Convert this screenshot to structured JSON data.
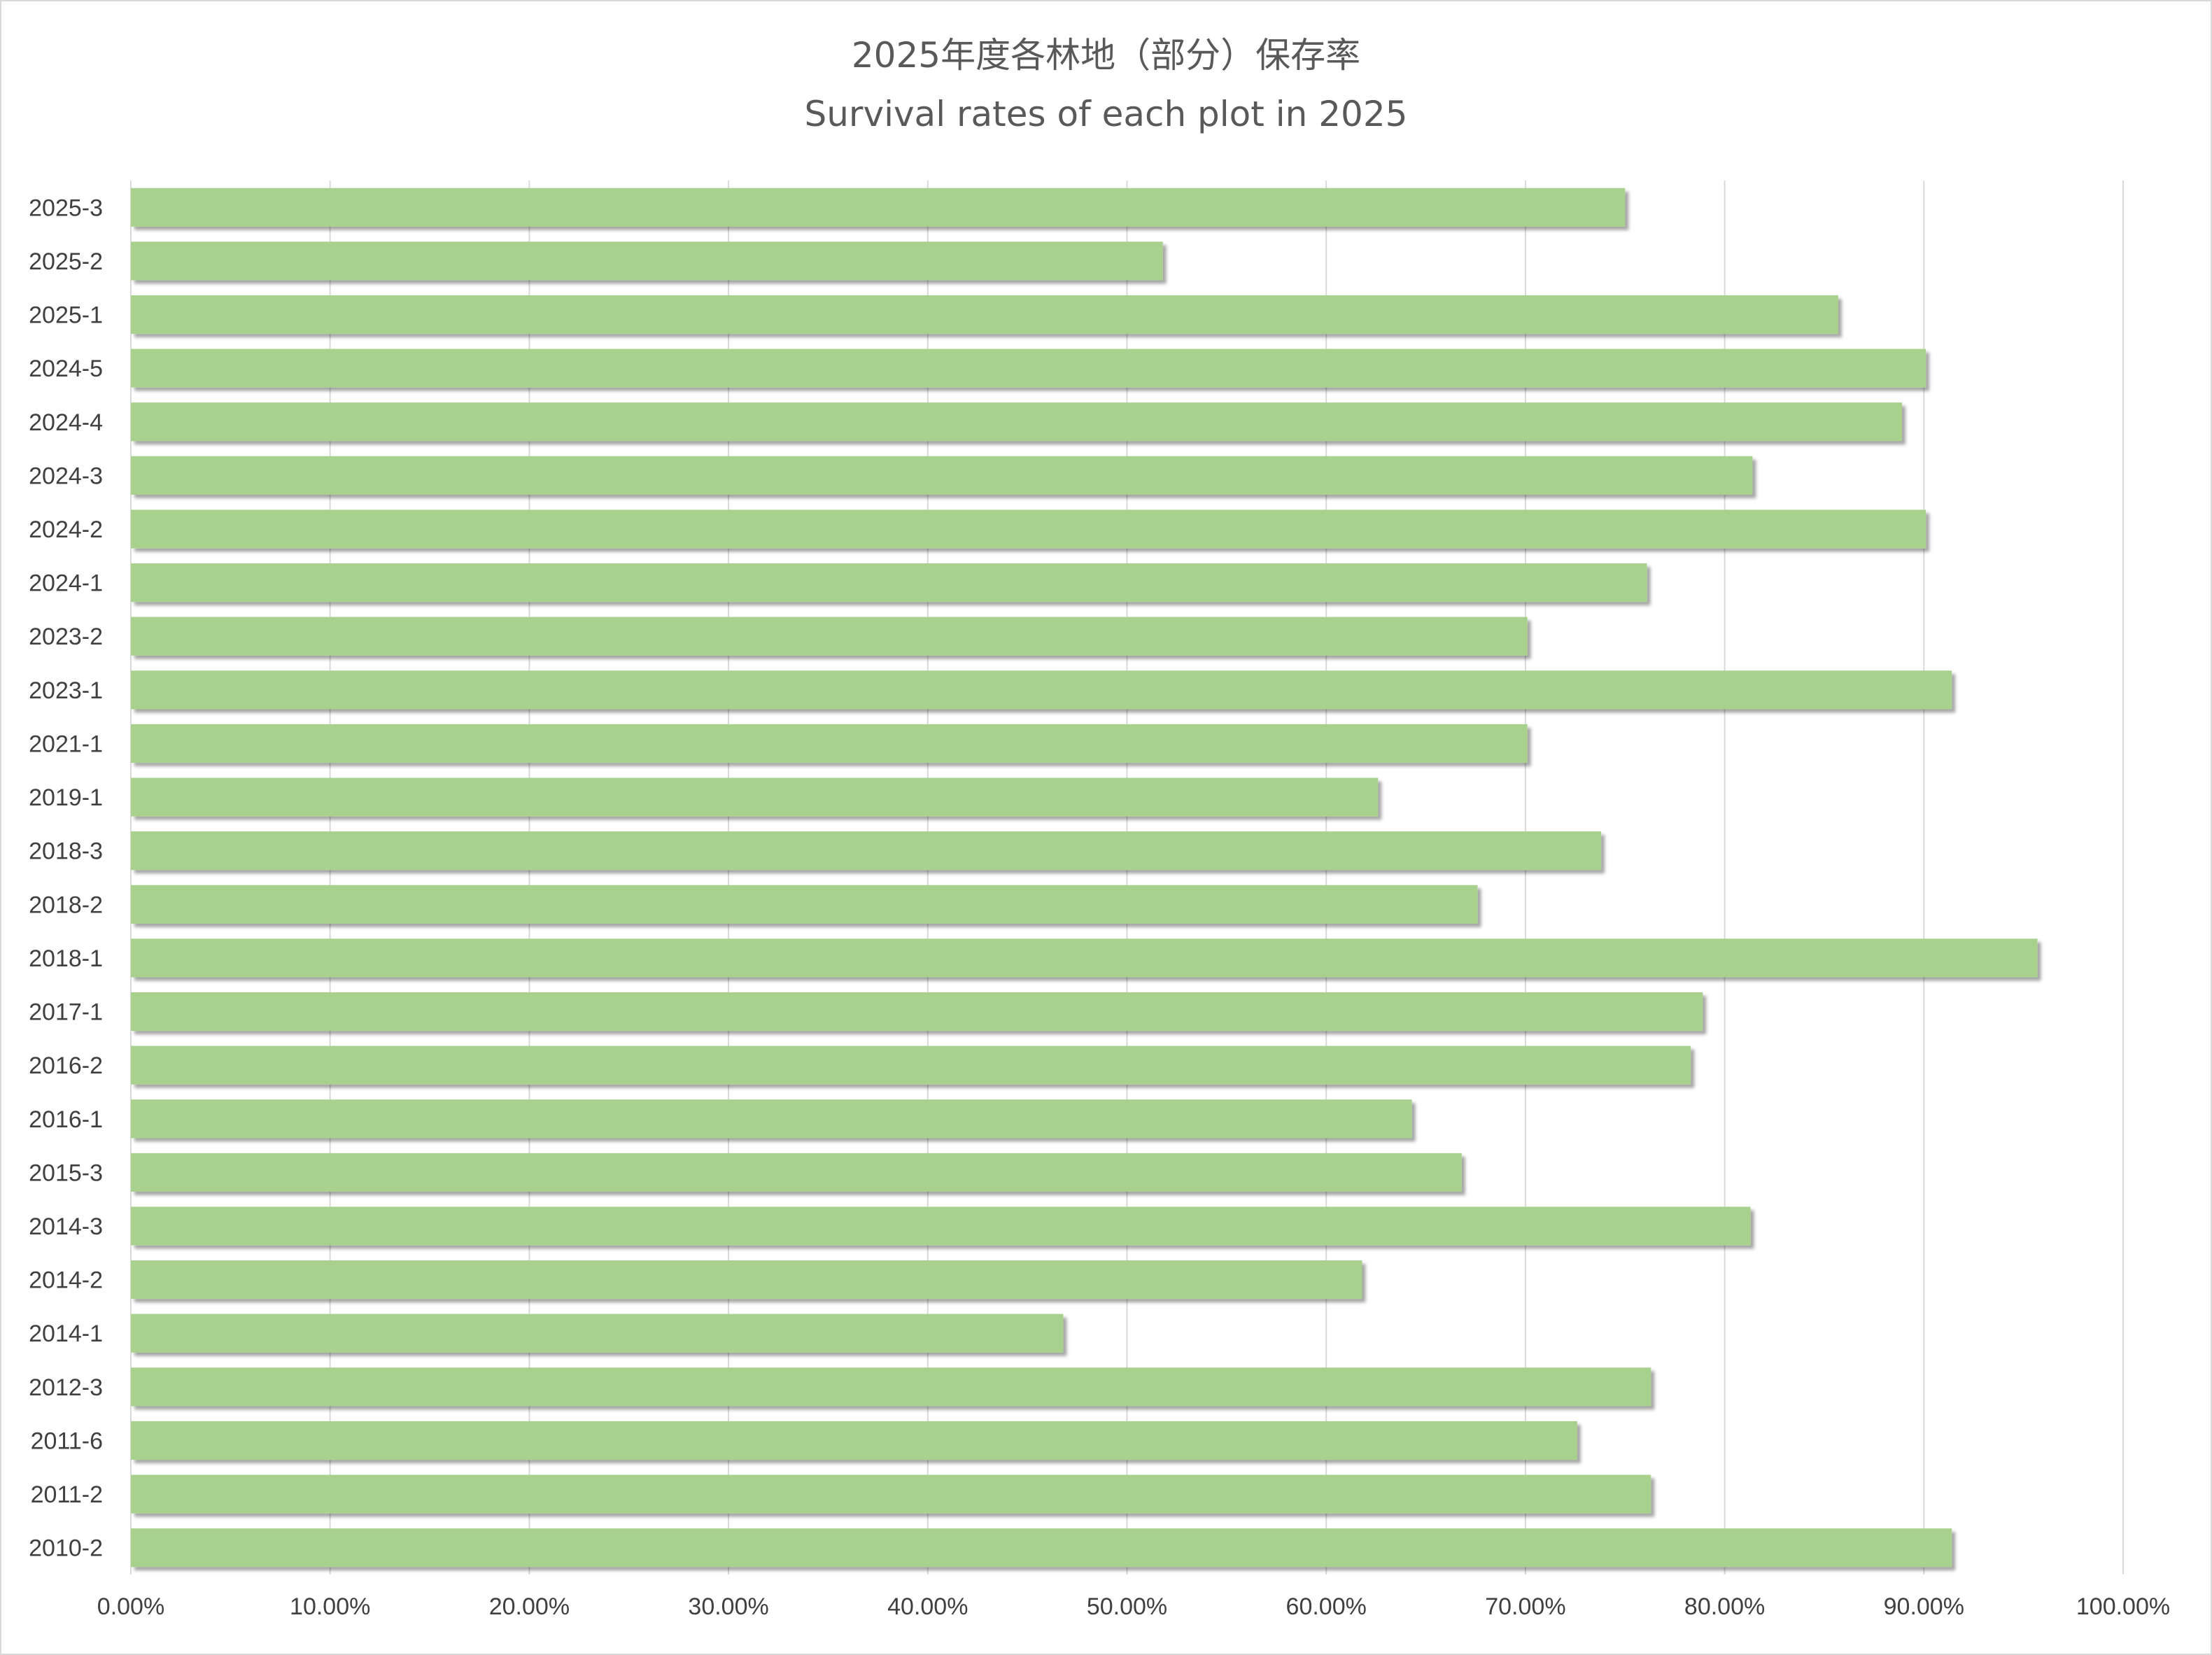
{
  "chart_data": {
    "type": "bar",
    "orientation": "horizontal",
    "title": "2025年度各林地（部分）保存率",
    "subtitle": "Survival rates of each plot in 2025",
    "categories": [
      "2025-3",
      "2025-2",
      "2025-1",
      "2024-5",
      "2024-4",
      "2024-3",
      "2024-2",
      "2024-1",
      "2023-2",
      "2023-1",
      "2021-1",
      "2019-1",
      "2018-3",
      "2018-2",
      "2018-1",
      "2017-1",
      "2016-2",
      "2016-1",
      "2015-3",
      "2014-3",
      "2014-2",
      "2014-1",
      "2012-3",
      "2011-6",
      "2011-2",
      "2010-2"
    ],
    "values": [
      75.0,
      51.8,
      85.7,
      90.1,
      88.9,
      81.4,
      90.1,
      76.1,
      70.1,
      91.4,
      70.1,
      62.6,
      73.8,
      67.6,
      95.7,
      78.9,
      78.3,
      64.3,
      66.8,
      81.3,
      61.8,
      46.8,
      76.3,
      72.6,
      76.3,
      91.4
    ],
    "x_ticks": [
      "0.00%",
      "10.00%",
      "20.00%",
      "30.00%",
      "40.00%",
      "50.00%",
      "60.00%",
      "70.00%",
      "80.00%",
      "90.00%",
      "100.00%"
    ],
    "xlim": [
      0,
      100
    ],
    "grid": "vertical",
    "legend": "none",
    "bar_color": "#a9d18e",
    "grid_color": "#d9d9d9",
    "text_color": "#404040"
  }
}
